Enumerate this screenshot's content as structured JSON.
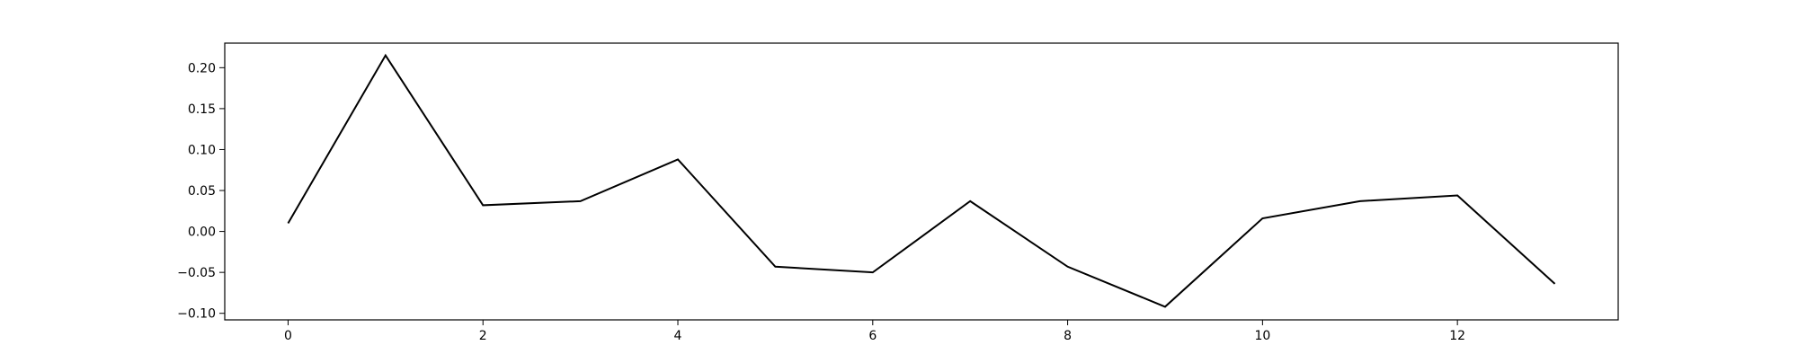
{
  "chart_data": {
    "type": "line",
    "title": "",
    "xlabel": "",
    "ylabel": "",
    "xlim": [
      -0.65,
      13.65
    ],
    "ylim": [
      -0.108,
      0.23
    ],
    "x_ticks": [
      0,
      2,
      4,
      6,
      8,
      10,
      12
    ],
    "x_tick_labels": [
      "0",
      "2",
      "4",
      "6",
      "8",
      "10",
      "12"
    ],
    "y_ticks": [
      -0.1,
      -0.05,
      0.0,
      0.05,
      0.1,
      0.15,
      0.2
    ],
    "y_tick_labels": [
      "−0.10",
      "−0.05",
      "0.00",
      "0.05",
      "0.10",
      "0.15",
      "0.20"
    ],
    "grid": false,
    "line_color": "#000000",
    "series": [
      {
        "x": [
          0,
          1,
          2,
          3,
          4,
          5,
          6,
          7,
          8,
          9,
          10,
          11,
          12,
          13
        ],
        "values": [
          0.01,
          0.215,
          0.032,
          0.037,
          0.088,
          -0.043,
          -0.05,
          0.037,
          -0.043,
          -0.092,
          0.016,
          0.037,
          0.044,
          -0.064
        ]
      }
    ]
  }
}
